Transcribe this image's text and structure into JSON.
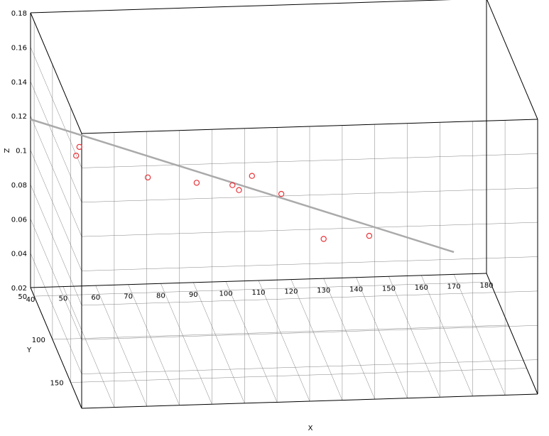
{
  "chart_data": {
    "type": "scatter",
    "projection": "3d",
    "title": "",
    "xlabel": "X",
    "ylabel": "Y",
    "zlabel": "Z",
    "xlim": [
      40,
      180
    ],
    "ylim": [
      40,
      180
    ],
    "zlim": [
      0.02,
      0.18
    ],
    "x_ticks": [
      40,
      50,
      60,
      70,
      80,
      90,
      100,
      110,
      120,
      130,
      140,
      150,
      160,
      170,
      180
    ],
    "y_ticks": [
      50,
      100,
      150
    ],
    "z_ticks": [
      0.02,
      0.04,
      0.06,
      0.08,
      0.1,
      0.12,
      0.14,
      0.16,
      0.18
    ],
    "x_tick_labels": [
      "40",
      "50",
      "60",
      "70",
      "80",
      "90",
      "100",
      "110",
      "120",
      "130",
      "140",
      "150",
      "160",
      "170",
      "180"
    ],
    "y_tick_labels": [
      "50",
      "100",
      "150"
    ],
    "z_tick_labels": [
      "0.02",
      "0.04",
      "0.06",
      "0.08",
      "0.1",
      "0.12",
      "0.14",
      "0.16",
      "0.18"
    ],
    "grid": true,
    "points": [
      {
        "x": 55,
        "y": 40,
        "z": 0.101
      },
      {
        "x": 54,
        "y": 40,
        "z": 0.096
      },
      {
        "x": 76,
        "y": 40,
        "z": 0.082
      },
      {
        "x": 91,
        "y": 40,
        "z": 0.078
      },
      {
        "x": 102,
        "y": 40,
        "z": 0.076
      },
      {
        "x": 104,
        "y": 40,
        "z": 0.073
      },
      {
        "x": 108,
        "y": 40,
        "z": 0.081
      },
      {
        "x": 117,
        "y": 40,
        "z": 0.07
      },
      {
        "x": 130,
        "y": 40,
        "z": 0.043
      },
      {
        "x": 144,
        "y": 40,
        "z": 0.044
      }
    ],
    "fit_line": [
      {
        "x": 40,
        "y": 40,
        "z": 0.118
      },
      {
        "x": 170,
        "y": 40,
        "z": 0.033
      }
    ],
    "colors": {
      "points": "#e8343a",
      "fit_line": "#aaaaaa",
      "grid": "#000000",
      "box": "#000000"
    }
  }
}
